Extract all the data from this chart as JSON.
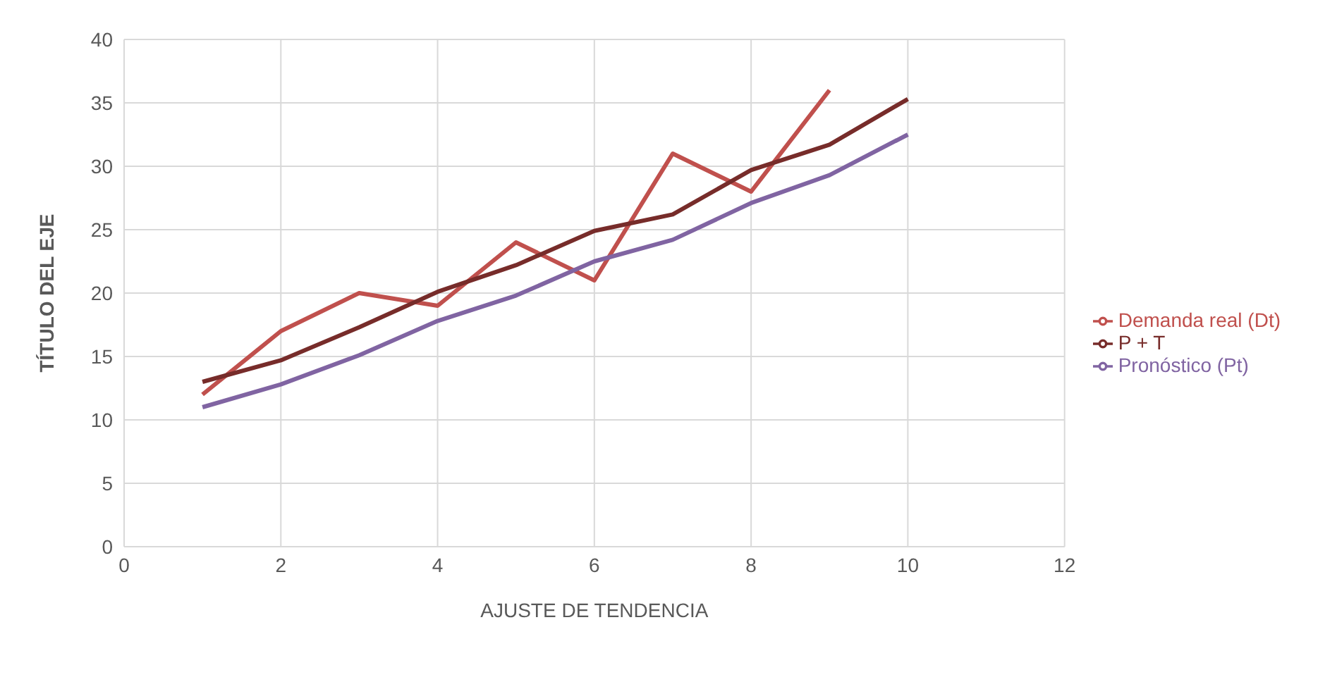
{
  "chart_data": {
    "type": "line",
    "xlabel": "AJUSTE DE TENDENCIA",
    "ylabel": "TÍTULO DEL EJE",
    "x": [
      1,
      2,
      3,
      4,
      5,
      6,
      7,
      8,
      9,
      10
    ],
    "series": [
      {
        "name": "Demanda real (Dt)",
        "color": "#c0504d",
        "values": [
          12,
          17,
          20,
          19,
          24,
          21,
          31,
          28,
          36,
          null
        ]
      },
      {
        "name": "Pronóstico (Pt)",
        "color": "#8064a2",
        "values": [
          11,
          12.8,
          15.1,
          17.8,
          19.8,
          22.5,
          24.2,
          27.1,
          29.3,
          32.5
        ]
      },
      {
        "name": "P + T",
        "color": "#772c2a",
        "values": [
          13,
          14.7,
          17.3,
          20.1,
          22.2,
          24.9,
          26.2,
          29.7,
          31.7,
          35.3
        ]
      }
    ],
    "xlim": [
      0,
      12
    ],
    "xticks": [
      0,
      2,
      4,
      6,
      8,
      10,
      12
    ],
    "ylim": [
      0,
      40
    ],
    "yticks": [
      0,
      5,
      10,
      15,
      20,
      25,
      30,
      35,
      40
    ],
    "grid": true,
    "legend": "right",
    "marker": "none",
    "line_style": "solid"
  }
}
